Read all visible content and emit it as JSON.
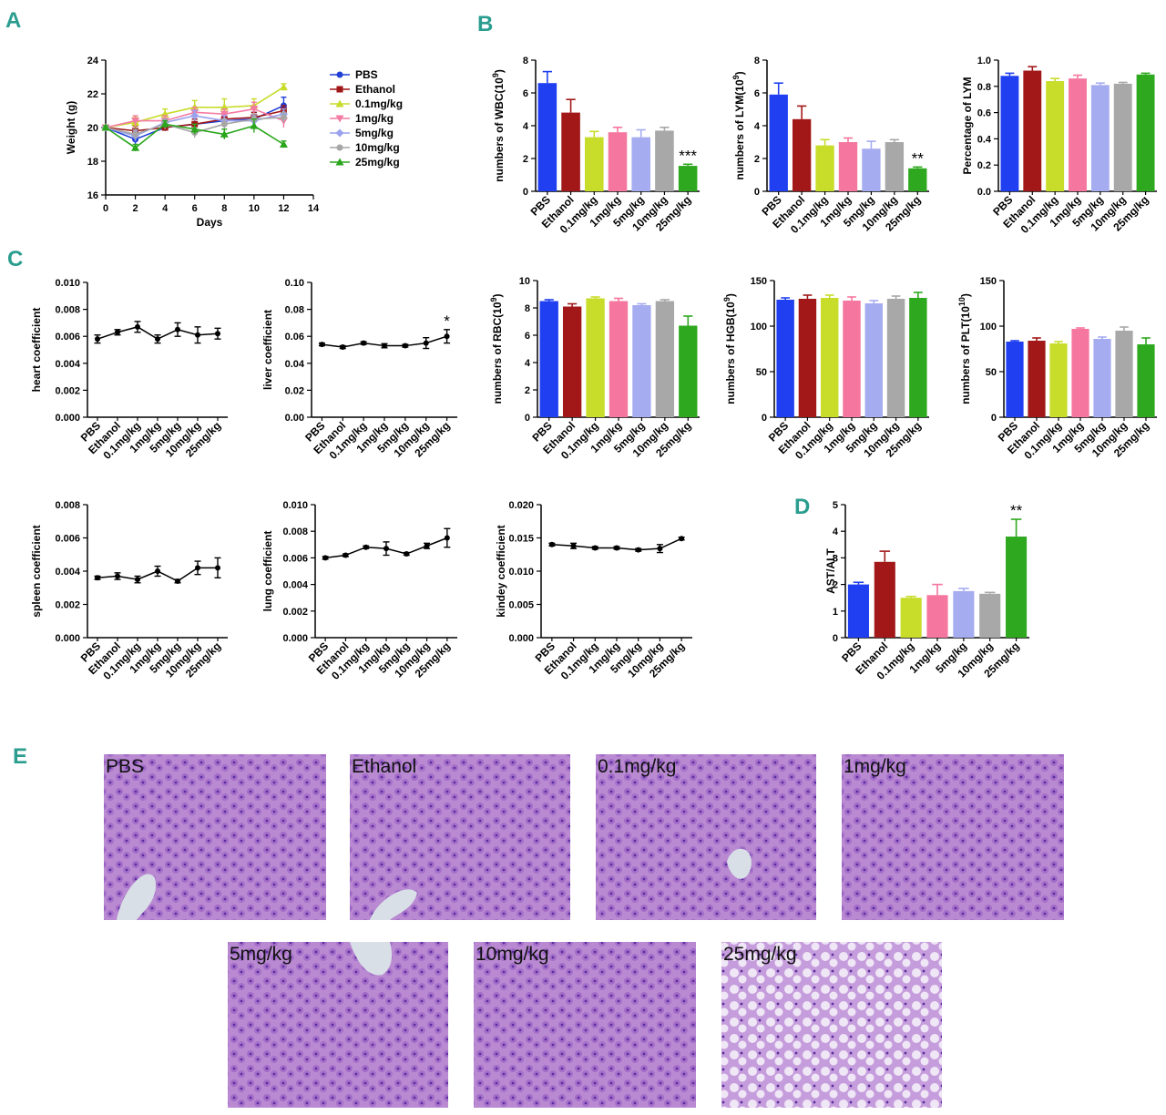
{
  "panel_labels": [
    "A",
    "B",
    "C",
    "D",
    "E"
  ],
  "groups": [
    "PBS",
    "Ethanol",
    "0.1mg/kg",
    "1mg/kg",
    "5mg/kg",
    "10mg/kg",
    "25mg/kg"
  ],
  "colors": {
    "series": [
      "#1f3fd6",
      "#a01616",
      "#c8dc2a",
      "#f47ba4",
      "#9aa2ee",
      "#a6a6a6",
      "#2aa61c"
    ],
    "bars": [
      "#1f3ff0",
      "#a21818",
      "#c8dc2a",
      "#f5769e",
      "#a6acf0",
      "#a8a8a8",
      "#2ea81e"
    ],
    "line_chart": "#000000",
    "tissue_bg": "#b98ad2",
    "tissue_cell": "#9a5fc4",
    "tissue_nuc": "#5a2fa0"
  },
  "chart_data": [
    {
      "type": "line",
      "panel": "A",
      "xlabel": "Days",
      "ylabel": "Weight (g)",
      "xlim": [
        0,
        14
      ],
      "xticks": [
        0,
        2,
        4,
        6,
        8,
        10,
        12,
        14
      ],
      "ylim": [
        16,
        24
      ],
      "yticks": [
        16,
        18,
        20,
        22,
        24
      ],
      "legend": "right",
      "x": [
        0,
        2,
        4,
        6,
        8,
        10,
        12
      ],
      "series": [
        {
          "name": "PBS",
          "marker": "circle",
          "values": [
            20,
            19.3,
            20.0,
            20.2,
            20.4,
            20.5,
            21.3
          ],
          "err": [
            0.1,
            0.3,
            0.2,
            0.3,
            0.3,
            0.4,
            0.5
          ]
        },
        {
          "name": "Ethanol",
          "marker": "square",
          "values": [
            20,
            19.8,
            20.0,
            20.2,
            20.5,
            20.6,
            21.0
          ],
          "err": [
            0.1,
            0.3,
            0.2,
            0.3,
            0.3,
            0.3,
            0.3
          ]
        },
        {
          "name": "0.1mg/kg",
          "marker": "triangle-up",
          "values": [
            20,
            20.3,
            20.8,
            21.2,
            21.2,
            21.3,
            22.4
          ],
          "err": [
            0.1,
            0.3,
            0.3,
            0.4,
            0.5,
            0.4,
            0.2
          ]
        },
        {
          "name": "1mg/kg",
          "marker": "triangle-down",
          "values": [
            20,
            20.4,
            20.4,
            20.9,
            20.8,
            21.1,
            20.4
          ],
          "err": [
            0.1,
            0.3,
            0.3,
            0.3,
            0.3,
            0.4,
            0.4
          ]
        },
        {
          "name": "5mg/kg",
          "marker": "diamond",
          "values": [
            20,
            19.5,
            20.3,
            20.7,
            20.4,
            20.4,
            20.8
          ],
          "err": [
            0.1,
            0.3,
            0.2,
            0.3,
            0.3,
            0.3,
            0.3
          ]
        },
        {
          "name": "10mg/kg",
          "marker": "circle",
          "values": [
            20,
            19.6,
            20.2,
            19.7,
            20.2,
            20.5,
            20.6
          ],
          "err": [
            0.1,
            0.3,
            0.3,
            0.3,
            0.3,
            0.3,
            0.3
          ]
        },
        {
          "name": "25mg/kg",
          "marker": "triangle-up",
          "values": [
            20,
            18.8,
            20.2,
            19.9,
            19.6,
            20.1,
            19.0
          ],
          "err": [
            0.1,
            0.2,
            0.2,
            0.3,
            0.3,
            0.4,
            0.2
          ]
        }
      ]
    },
    {
      "type": "bar",
      "panel": "B",
      "ylabel_base": "numbers of WBC(10",
      "ylabel_exp": "9",
      "ylabel_end": ")",
      "ylim": [
        0,
        8
      ],
      "yticks": [
        "0",
        "2",
        "4",
        "6",
        "8"
      ],
      "values": [
        6.6,
        4.8,
        3.3,
        3.6,
        3.3,
        3.7,
        1.55
      ],
      "err": [
        0.7,
        0.8,
        0.35,
        0.3,
        0.45,
        0.2,
        0.1
      ],
      "sig": "***"
    },
    {
      "type": "bar",
      "panel": "B",
      "ylabel_base": "numbers of LYM(10",
      "ylabel_exp": "9",
      "ylabel_end": ")",
      "ylim": [
        0,
        8
      ],
      "yticks": [
        "0",
        "2",
        "4",
        "6",
        "8"
      ],
      "values": [
        5.9,
        4.4,
        2.8,
        3.0,
        2.6,
        3.0,
        1.4
      ],
      "err": [
        0.7,
        0.8,
        0.35,
        0.25,
        0.45,
        0.15,
        0.08
      ],
      "sig": "**"
    },
    {
      "type": "bar",
      "panel": "B",
      "ylabel_base": "Percentage of LYM",
      "ylabel_exp": "",
      "ylabel_end": "",
      "ylim": [
        0,
        1
      ],
      "yticks": [
        "0.0",
        "0.2",
        "0.4",
        "0.6",
        "0.8",
        "1.0"
      ],
      "values": [
        0.88,
        0.92,
        0.84,
        0.86,
        0.81,
        0.82,
        0.89
      ],
      "err": [
        0.02,
        0.03,
        0.02,
        0.025,
        0.015,
        0.01,
        0.01
      ],
      "sig": ""
    },
    {
      "type": "line",
      "panel": "C",
      "ylabel": "heart coefficient",
      "ylim": [
        0,
        0.01
      ],
      "yticks": [
        "0.000",
        "0.002",
        "0.004",
        "0.006",
        "0.008",
        "0.010"
      ],
      "values": [
        0.0058,
        0.0063,
        0.0067,
        0.0058,
        0.0065,
        0.0061,
        0.0062
      ],
      "err": [
        0.0003,
        0.0002,
        0.0004,
        0.0003,
        0.0005,
        0.0006,
        0.0004
      ],
      "sig": ""
    },
    {
      "type": "line",
      "panel": "C",
      "ylabel": "liver coefficient",
      "ylim": [
        0,
        0.1
      ],
      "yticks": [
        "0.00",
        "0.02",
        "0.04",
        "0.06",
        "0.08",
        "0.10"
      ],
      "values": [
        0.054,
        0.052,
        0.055,
        0.053,
        0.053,
        0.055,
        0.06
      ],
      "err": [
        0.001,
        0.001,
        0.001,
        0.0015,
        0.001,
        0.004,
        0.005
      ],
      "sig": "*"
    },
    {
      "type": "bar",
      "panel": "C",
      "ylabel_base": "numbers of RBC(10",
      "ylabel_exp": "9",
      "ylabel_end": ")",
      "ylim": [
        0,
        10
      ],
      "yticks": [
        "0",
        "2",
        "4",
        "6",
        "8",
        "10"
      ],
      "values": [
        8.5,
        8.1,
        8.7,
        8.5,
        8.2,
        8.5,
        6.7
      ],
      "err": [
        0.1,
        0.2,
        0.1,
        0.2,
        0.1,
        0.1,
        0.7
      ],
      "sig": ""
    },
    {
      "type": "bar",
      "panel": "C",
      "ylabel_base": "numbers of HGB(10",
      "ylabel_exp": "9",
      "ylabel_end": ")",
      "ylim": [
        0,
        150
      ],
      "yticks": [
        "0",
        "50",
        "100",
        "150"
      ],
      "values": [
        129,
        130,
        131,
        128,
        125,
        130,
        131
      ],
      "err": [
        2,
        4,
        3,
        4,
        3,
        3,
        6
      ],
      "sig": ""
    },
    {
      "type": "bar",
      "panel": "C",
      "ylabel_base": "numbers of PLT(10",
      "ylabel_exp": "10",
      "ylabel_end": ")",
      "ylim": [
        0,
        150
      ],
      "yticks": [
        "0",
        "50",
        "100",
        "150"
      ],
      "values": [
        83,
        84,
        81,
        97,
        86,
        95,
        80
      ],
      "err": [
        1,
        3,
        2,
        1,
        2,
        4,
        7
      ],
      "sig": ""
    },
    {
      "type": "line",
      "panel": "C",
      "ylabel": "spleen coefficient",
      "ylim": [
        0,
        0.008
      ],
      "yticks": [
        "0.000",
        "0.002",
        "0.004",
        "0.006",
        "0.008"
      ],
      "values": [
        0.0036,
        0.0037,
        0.0035,
        0.004,
        0.0034,
        0.0042,
        0.0042
      ],
      "err": [
        0.0001,
        0.0002,
        0.0002,
        0.0003,
        0.0001,
        0.0004,
        0.0006
      ],
      "sig": ""
    },
    {
      "type": "line",
      "panel": "C",
      "ylabel": "lung coefficient",
      "ylim": [
        0,
        0.01
      ],
      "yticks": [
        "0.000",
        "0.002",
        "0.004",
        "0.006",
        "0.008",
        "0.010"
      ],
      "values": [
        0.006,
        0.0062,
        0.0068,
        0.0067,
        0.0063,
        0.0069,
        0.0075
      ],
      "err": [
        0.0001,
        0.0001,
        0.0001,
        0.0005,
        0.0001,
        0.0002,
        0.0007
      ],
      "sig": ""
    },
    {
      "type": "line",
      "panel": "C",
      "ylabel": "kindey coefficient",
      "ylim": [
        0,
        0.02
      ],
      "yticks": [
        "0.000",
        "0.005",
        "0.010",
        "0.015",
        "0.020"
      ],
      "values": [
        0.014,
        0.0138,
        0.0135,
        0.0135,
        0.0132,
        0.0134,
        0.0149
      ],
      "err": [
        0.0002,
        0.0004,
        0.0002,
        0.0002,
        0.0002,
        0.0006,
        0.0002
      ],
      "sig": ""
    },
    {
      "type": "bar",
      "panel": "D",
      "ylabel_base": "AST/ALT",
      "ylabel_exp": "",
      "ylabel_end": "",
      "ylim": [
        0,
        5
      ],
      "yticks": [
        "0",
        "1",
        "2",
        "3",
        "4",
        "5"
      ],
      "values": [
        2.0,
        2.85,
        1.5,
        1.6,
        1.75,
        1.65,
        3.8
      ],
      "err": [
        0.08,
        0.4,
        0.05,
        0.4,
        0.1,
        0.05,
        0.65
      ],
      "sig": "**"
    }
  ],
  "histology": {
    "labels": [
      "PBS",
      "Ethanol",
      "0.1mg/kg",
      "1mg/kg",
      "5mg/kg",
      "10mg/kg",
      "25mg/kg"
    ]
  }
}
